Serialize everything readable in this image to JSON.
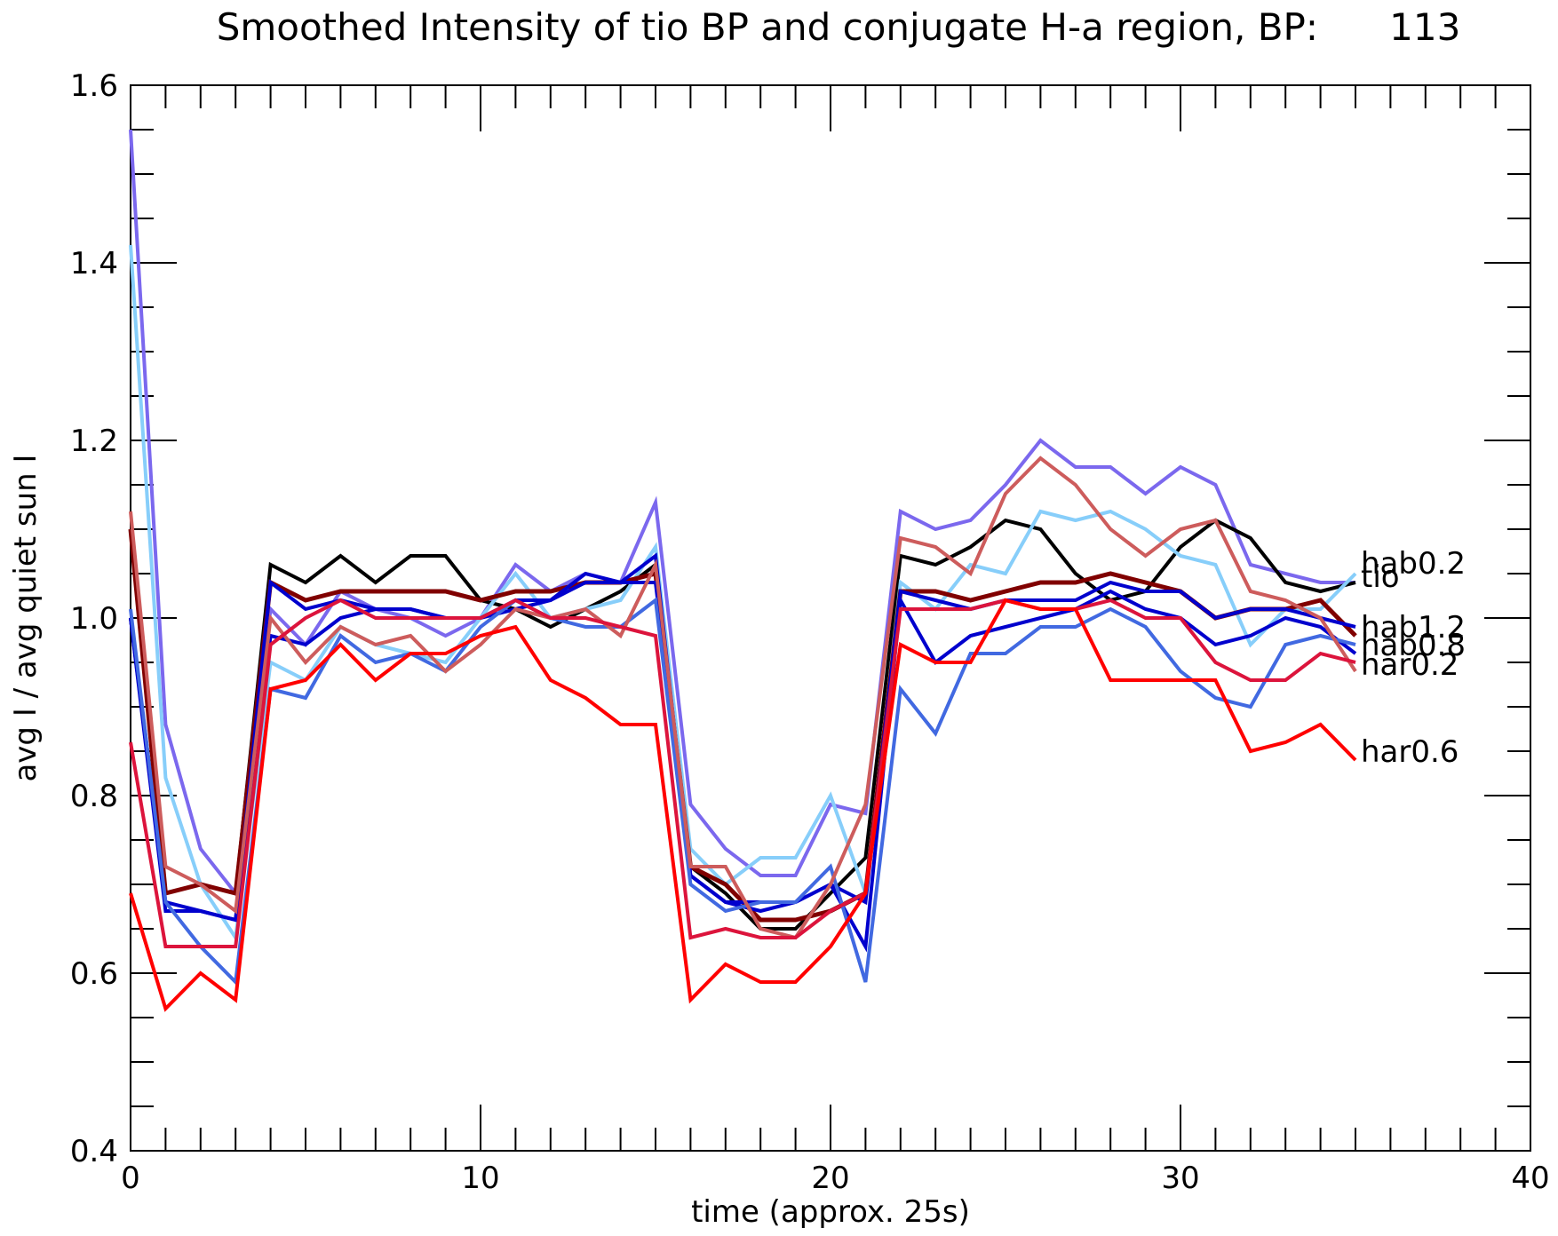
{
  "chart_data": {
    "type": "line",
    "title": "Smoothed Intensity of tio BP and conjugate H-a region, BP:      113",
    "xlabel": "time (approx. 25s)",
    "ylabel": "avg I / avg quiet sun I",
    "xlim": [
      0,
      40
    ],
    "ylim": [
      0.4,
      1.6
    ],
    "xticks": [
      0,
      10,
      20,
      30,
      40
    ],
    "yticks": [
      0.4,
      0.6,
      0.8,
      1.0,
      1.2,
      1.4,
      1.6
    ],
    "xtick_labels": [
      "0",
      "10",
      "20",
      "30",
      "40"
    ],
    "ytick_labels": [
      "0.4",
      "0.6",
      "0.8",
      "1.0",
      "1.2",
      "1.4",
      "1.6"
    ],
    "x_minor_step": 1,
    "y_minor_step": 0.05,
    "grid": false,
    "x": [
      0,
      1,
      2,
      3,
      4,
      5,
      6,
      7,
      8,
      9,
      10,
      11,
      12,
      13,
      14,
      15,
      16,
      17,
      18,
      19,
      20,
      21,
      22,
      23,
      24,
      25,
      26,
      27,
      28,
      29,
      30,
      31,
      32,
      33,
      34,
      35
    ],
    "series": [
      {
        "name": "hab0.2",
        "label_value": 1.062,
        "color": "#7b68ee",
        "values": [
          1.55,
          0.88,
          0.74,
          0.69,
          1.01,
          0.97,
          1.03,
          1.01,
          1.0,
          0.98,
          1.0,
          1.06,
          1.03,
          1.05,
          1.04,
          1.13,
          0.79,
          0.74,
          0.71,
          0.71,
          0.79,
          0.78,
          1.12,
          1.1,
          1.11,
          1.15,
          1.2,
          1.17,
          1.17,
          1.14,
          1.17,
          1.15,
          1.06,
          1.05,
          1.04,
          1.04
        ]
      },
      {
        "name": "tio",
        "label_value": 1.047,
        "color": "#000000",
        "values": [
          1.0,
          0.69,
          0.7,
          0.69,
          1.06,
          1.04,
          1.07,
          1.04,
          1.07,
          1.07,
          1.02,
          1.01,
          0.99,
          1.01,
          1.03,
          1.06,
          0.72,
          0.69,
          0.65,
          0.65,
          0.69,
          0.73,
          1.07,
          1.06,
          1.08,
          1.11,
          1.1,
          1.05,
          1.02,
          1.03,
          1.08,
          1.11,
          1.09,
          1.04,
          1.03,
          1.04
        ]
      },
      {
        "name": "",
        "label_value": 1.047,
        "color": "#87cefa",
        "values": [
          1.42,
          0.82,
          0.7,
          0.64,
          0.95,
          0.93,
          0.99,
          0.97,
          0.96,
          0.95,
          1.0,
          1.05,
          1.0,
          1.01,
          1.02,
          1.08,
          0.74,
          0.7,
          0.73,
          0.73,
          0.8,
          0.69,
          1.04,
          1.01,
          1.06,
          1.05,
          1.12,
          1.11,
          1.12,
          1.1,
          1.07,
          1.06,
          0.97,
          1.01,
          1.01,
          1.05
        ]
      },
      {
        "name": "hab1.2",
        "label_value": 0.99,
        "color": "#800000",
        "values": [
          1.1,
          0.69,
          0.7,
          0.69,
          1.04,
          1.02,
          1.03,
          1.03,
          1.03,
          1.03,
          1.02,
          1.03,
          1.03,
          1.04,
          1.04,
          1.05,
          0.72,
          0.7,
          0.66,
          0.66,
          0.67,
          0.69,
          1.03,
          1.03,
          1.02,
          1.03,
          1.04,
          1.04,
          1.05,
          1.04,
          1.03,
          1.0,
          1.01,
          1.01,
          1.02,
          0.98
        ]
      },
      {
        "name": "",
        "label_value": 0.985,
        "color": "#0000cd",
        "values": [
          1.0,
          0.67,
          0.67,
          0.66,
          1.04,
          1.01,
          1.02,
          1.01,
          1.01,
          1.0,
          1.0,
          1.02,
          1.02,
          1.04,
          1.04,
          1.07,
          0.71,
          0.68,
          0.67,
          0.68,
          0.7,
          0.68,
          1.03,
          1.02,
          1.01,
          1.02,
          1.02,
          1.02,
          1.04,
          1.03,
          1.03,
          1.0,
          1.01,
          1.01,
          1.0,
          0.99
        ]
      },
      {
        "name": "",
        "label_value": 0.975,
        "color": "#0000cd",
        "values": [
          1.0,
          0.68,
          0.67,
          0.66,
          0.98,
          0.97,
          1.0,
          1.01,
          1.01,
          1.0,
          1.0,
          1.01,
          1.02,
          1.05,
          1.04,
          1.04,
          0.71,
          0.68,
          0.68,
          0.68,
          0.7,
          0.63,
          1.02,
          0.95,
          0.98,
          0.99,
          1.0,
          1.01,
          1.03,
          1.01,
          1.0,
          0.97,
          0.98,
          1.0,
          0.99,
          0.96
        ]
      },
      {
        "name": "hab0.8",
        "label_value": 0.97,
        "color": "#4169e1",
        "values": [
          1.01,
          0.68,
          0.63,
          0.59,
          0.92,
          0.91,
          0.98,
          0.95,
          0.96,
          0.94,
          0.99,
          1.02,
          1.0,
          0.99,
          0.99,
          1.02,
          0.7,
          0.67,
          0.68,
          0.68,
          0.72,
          0.59,
          0.92,
          0.87,
          0.96,
          0.96,
          0.99,
          0.99,
          1.01,
          0.99,
          0.94,
          0.91,
          0.9,
          0.97,
          0.98,
          0.97
        ]
      },
      {
        "name": "",
        "label_value": 0.962,
        "color": "#cd5c5c",
        "values": [
          1.12,
          0.72,
          0.7,
          0.67,
          1.0,
          0.95,
          0.99,
          0.97,
          0.98,
          0.94,
          0.97,
          1.01,
          1.0,
          1.01,
          0.98,
          1.06,
          0.72,
          0.72,
          0.65,
          0.64,
          0.7,
          0.79,
          1.09,
          1.08,
          1.05,
          1.14,
          1.18,
          1.15,
          1.1,
          1.07,
          1.1,
          1.11,
          1.03,
          1.02,
          1.0,
          0.94
        ]
      },
      {
        "name": "har0.2",
        "label_value": 0.948,
        "color": "#dc143c",
        "values": [
          0.86,
          0.63,
          0.63,
          0.63,
          0.97,
          1.0,
          1.02,
          1.0,
          1.0,
          1.0,
          1.0,
          1.02,
          1.0,
          1.0,
          0.99,
          0.98,
          0.64,
          0.65,
          0.64,
          0.64,
          0.67,
          0.69,
          1.01,
          1.01,
          1.01,
          1.02,
          1.01,
          1.01,
          1.02,
          1.0,
          1.0,
          0.95,
          0.93,
          0.93,
          0.96,
          0.95
        ]
      },
      {
        "name": "har0.6",
        "label_value": 0.85,
        "color": "#ff0000",
        "values": [
          0.69,
          0.56,
          0.6,
          0.57,
          0.92,
          0.93,
          0.97,
          0.93,
          0.96,
          0.96,
          0.98,
          0.99,
          0.93,
          0.91,
          0.88,
          0.88,
          0.57,
          0.61,
          0.59,
          0.59,
          0.63,
          0.69,
          0.97,
          0.95,
          0.95,
          1.02,
          1.01,
          1.01,
          0.93,
          0.93,
          0.93,
          0.93,
          0.85,
          0.86,
          0.88,
          0.84
        ]
      }
    ]
  }
}
